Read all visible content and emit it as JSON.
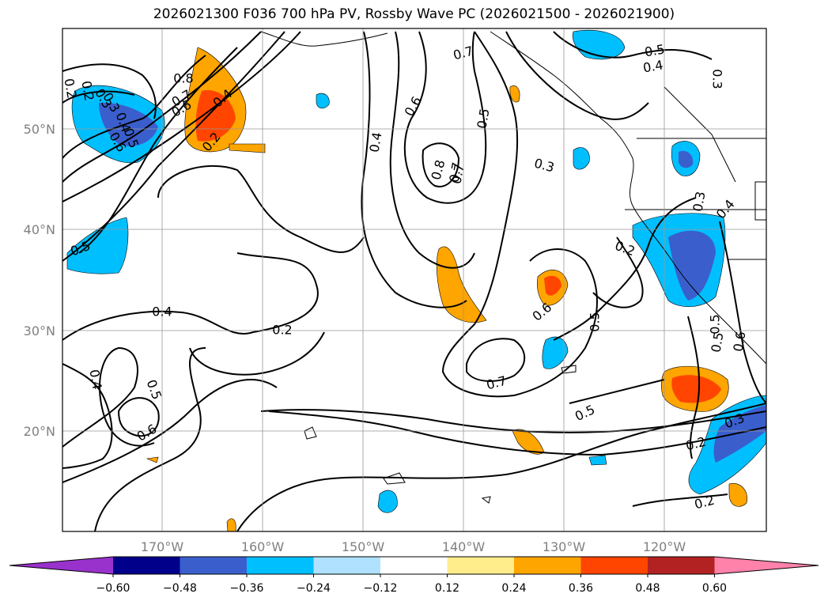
{
  "title": "2026021300 F036 700 hPa PV, Rossby Wave PC (2026021500 - 2026021900)",
  "lat_labels": [
    "50°N",
    "40°N",
    "30°N",
    "20°N"
  ],
  "lon_labels": [
    "170°W",
    "160°W",
    "150°W",
    "140°W",
    "130°W",
    "120°W"
  ],
  "colorbar": {
    "ticks": [
      "−0.60",
      "−0.48",
      "−0.36",
      "−0.24",
      "−0.12",
      "0.12",
      "0.24",
      "0.36",
      "0.48",
      "0.60"
    ],
    "colors": [
      "#9932cc",
      "#00008b",
      "#3a5fcd",
      "#00bfff",
      "#b0e2ff",
      "#ffffff",
      "#ffec8b",
      "#ffa500",
      "#ff4500",
      "#b22222",
      "#ff82ab"
    ]
  },
  "contour_labels": [
    {
      "text": "0.2",
      "id": "c1"
    },
    {
      "text": "0.3",
      "id": "c2"
    },
    {
      "text": "0.4",
      "id": "c3"
    },
    {
      "text": "0.5",
      "id": "c4"
    },
    {
      "text": "0.6",
      "id": "c5"
    },
    {
      "text": "0.8",
      "id": "c6"
    },
    {
      "text": "0.7",
      "id": "c7"
    },
    {
      "text": "0.6",
      "id": "c8"
    },
    {
      "text": "0.4",
      "id": "c9"
    },
    {
      "text": "0.2",
      "id": "c10"
    },
    {
      "text": "0.4",
      "id": "c11"
    },
    {
      "text": "0.6",
      "id": "c12"
    },
    {
      "text": "0.5",
      "id": "c13"
    },
    {
      "text": "0.8",
      "id": "c14"
    },
    {
      "text": "0.7",
      "id": "c15"
    },
    {
      "text": "0.7",
      "id": "c16"
    },
    {
      "text": "0.5",
      "id": "c17"
    },
    {
      "text": "0.4",
      "id": "c18"
    },
    {
      "text": "0.3",
      "id": "c19"
    },
    {
      "text": "0.3",
      "id": "c20"
    },
    {
      "text": "0.5",
      "id": "c21"
    },
    {
      "text": "0.4",
      "id": "c22"
    },
    {
      "text": "0.2",
      "id": "c23"
    },
    {
      "text": "0.3",
      "id": "c24"
    },
    {
      "text": "0.4",
      "id": "c25"
    },
    {
      "text": "0.2",
      "id": "c26"
    },
    {
      "text": "0.5",
      "id": "c27"
    },
    {
      "text": "0.4",
      "id": "c28"
    },
    {
      "text": "0.5",
      "id": "c29"
    },
    {
      "text": "0.6",
      "id": "c30"
    },
    {
      "text": "0.6",
      "id": "c31"
    },
    {
      "text": "0.7",
      "id": "c32"
    },
    {
      "text": "0.5",
      "id": "c33"
    },
    {
      "text": "0.5",
      "id": "c34"
    },
    {
      "text": "0.3",
      "id": "c35"
    },
    {
      "text": "0.2",
      "id": "c36"
    },
    {
      "text": "0.2",
      "id": "c37"
    },
    {
      "text": "0.5",
      "id": "c38"
    },
    {
      "text": "0.6",
      "id": "c39"
    },
    {
      "text": "0.2",
      "id": "c40"
    },
    {
      "text": "0.3",
      "id": "c41"
    },
    {
      "text": "0.7",
      "id": "c42"
    }
  ]
}
